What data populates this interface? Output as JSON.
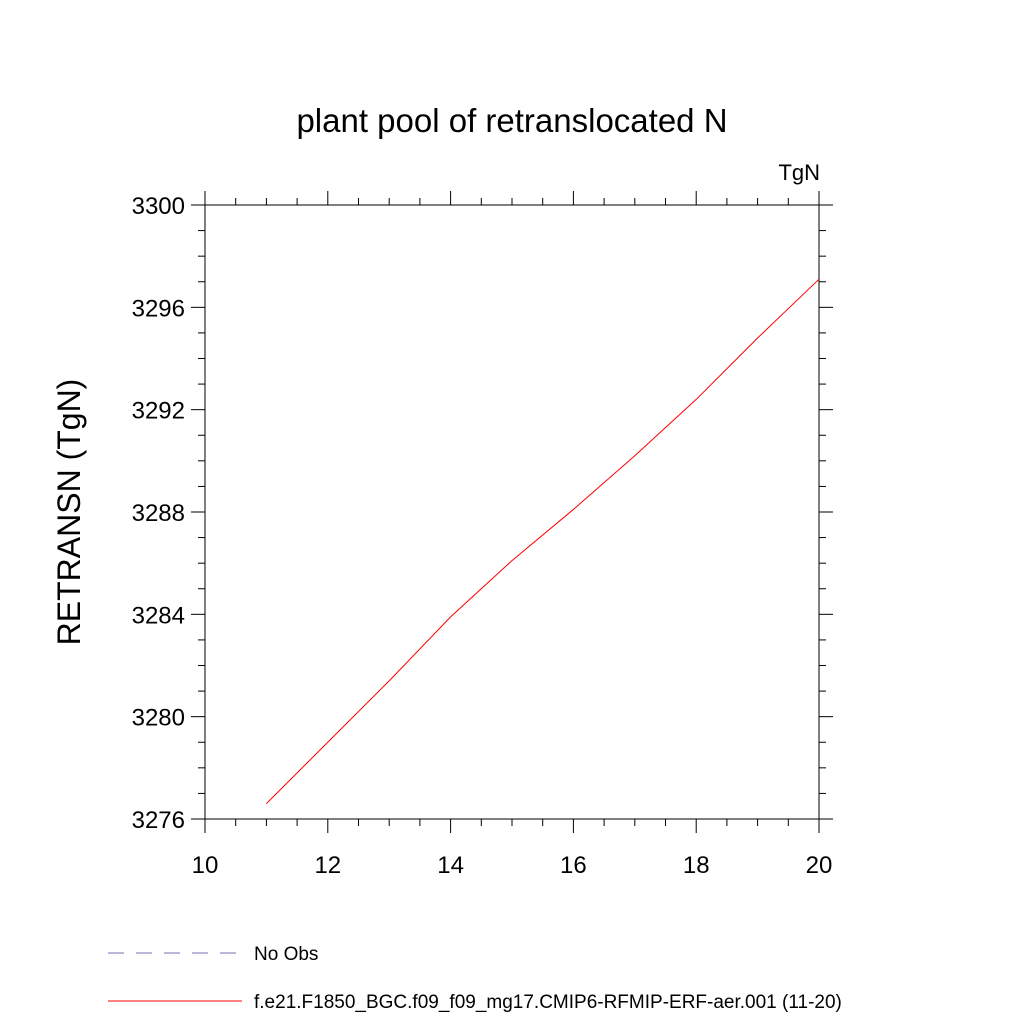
{
  "chart_data": {
    "type": "line",
    "title": "plant pool of retranslocated N",
    "units_label": "TgN",
    "ylabel": "RETRANSN  (TgN)",
    "xlabel": "",
    "xlim": [
      10,
      20
    ],
    "ylim": [
      3276,
      3300
    ],
    "xticks": [
      10,
      12,
      14,
      16,
      18,
      20
    ],
    "yticks": [
      3276,
      3280,
      3284,
      3288,
      3292,
      3296,
      3300
    ],
    "grid": false,
    "legend_position": "bottom-left",
    "series": [
      {
        "name": "f.e21.F1850_BGC.f09_f09_mg17.CMIP6-RFMIP-ERF-aer.001 (11-20)",
        "color": "#ff0000",
        "style": "solid",
        "x": [
          11,
          12,
          13,
          14,
          15,
          16,
          17,
          18,
          19,
          20
        ],
        "y": [
          3276.6,
          3279.0,
          3281.4,
          3283.9,
          3286.1,
          3288.1,
          3290.2,
          3292.4,
          3294.8,
          3297.1
        ]
      }
    ],
    "legend": [
      {
        "label": "No Obs",
        "color": "#7a6fb0",
        "style": "dashed"
      },
      {
        "label": "f.e21.F1850_BGC.f09_f09_mg17.CMIP6-RFMIP-ERF-aer.001 (11-20)",
        "color": "#ff0000",
        "style": "solid"
      }
    ]
  }
}
